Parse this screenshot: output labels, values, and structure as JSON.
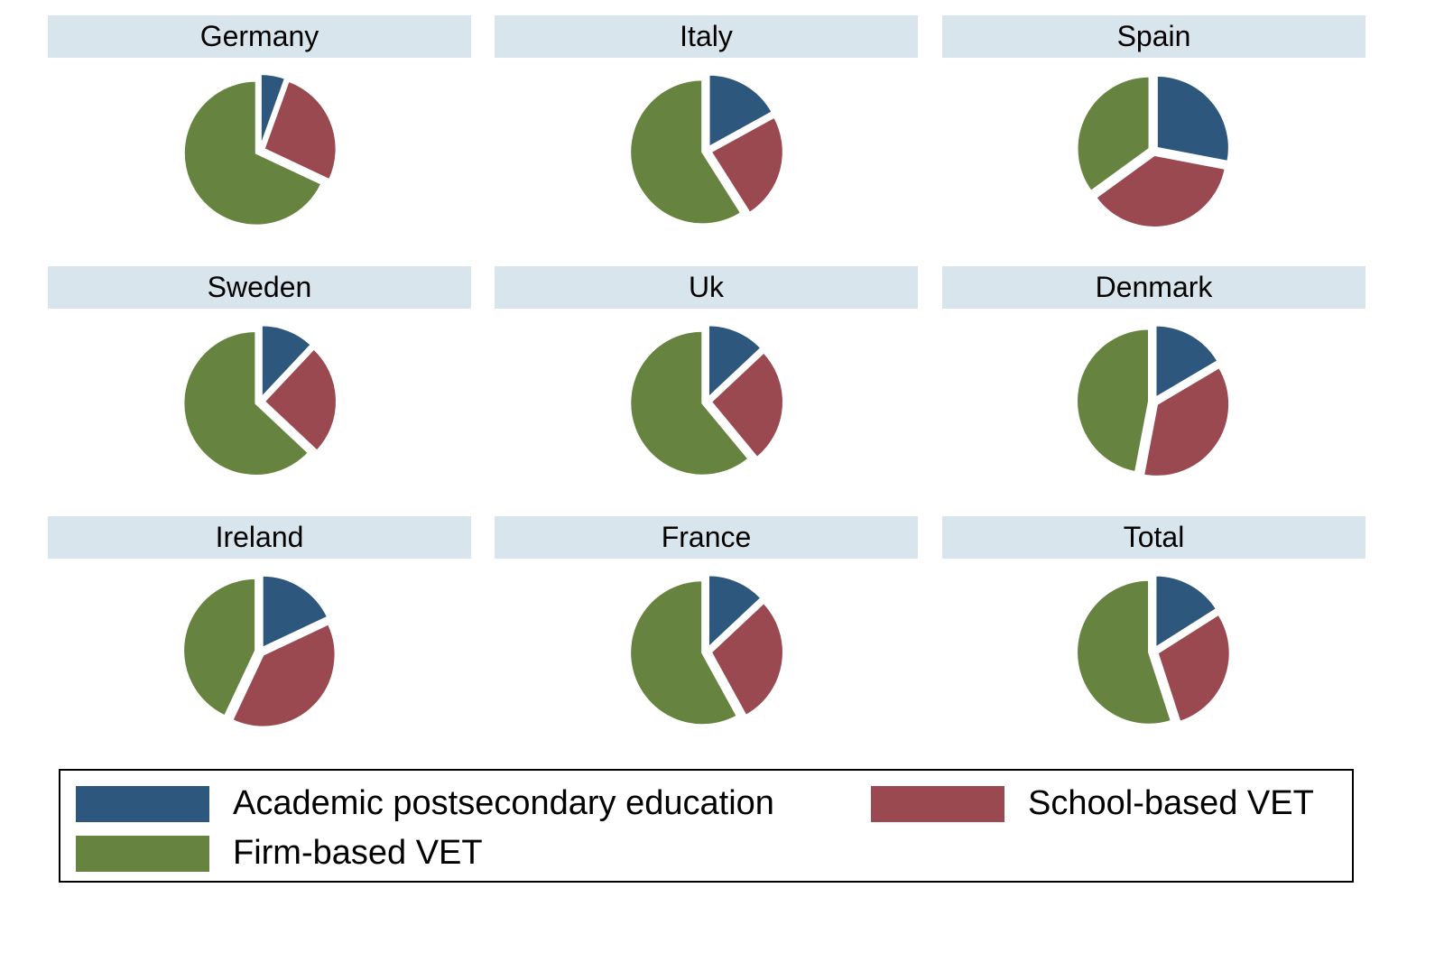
{
  "chart_data": {
    "type": "pie",
    "title": "",
    "series_names": [
      "Academic postsecondary education",
      "School-based VET",
      "Firm-based VET"
    ],
    "colors": [
      "#2e577d",
      "#9a4950",
      "#66833f"
    ],
    "strip_color": "#d9e5ec",
    "panels": [
      {
        "name": "Germany",
        "values": [
          5.5,
          26.5,
          68
        ]
      },
      {
        "name": "Italy",
        "values": [
          17,
          24,
          59
        ]
      },
      {
        "name": "Spain",
        "values": [
          28,
          37,
          35
        ]
      },
      {
        "name": "Sweden",
        "values": [
          12,
          25,
          63
        ]
      },
      {
        "name": "Uk",
        "values": [
          13,
          26,
          61
        ]
      },
      {
        "name": "Denmark",
        "values": [
          16.5,
          36.5,
          47
        ]
      },
      {
        "name": "Ireland",
        "values": [
          18,
          39,
          43
        ]
      },
      {
        "name": "France",
        "values": [
          13,
          29,
          58
        ]
      },
      {
        "name": "Total",
        "values": [
          16,
          29,
          55
        ]
      }
    ],
    "legend": {
      "placement": "bottom",
      "entries": [
        {
          "label": "Academic postsecondary education",
          "color": "#2e577d"
        },
        {
          "label": "School-based VET",
          "color": "#9a4950"
        },
        {
          "label": "Firm-based VET",
          "color": "#66833f"
        }
      ]
    }
  }
}
